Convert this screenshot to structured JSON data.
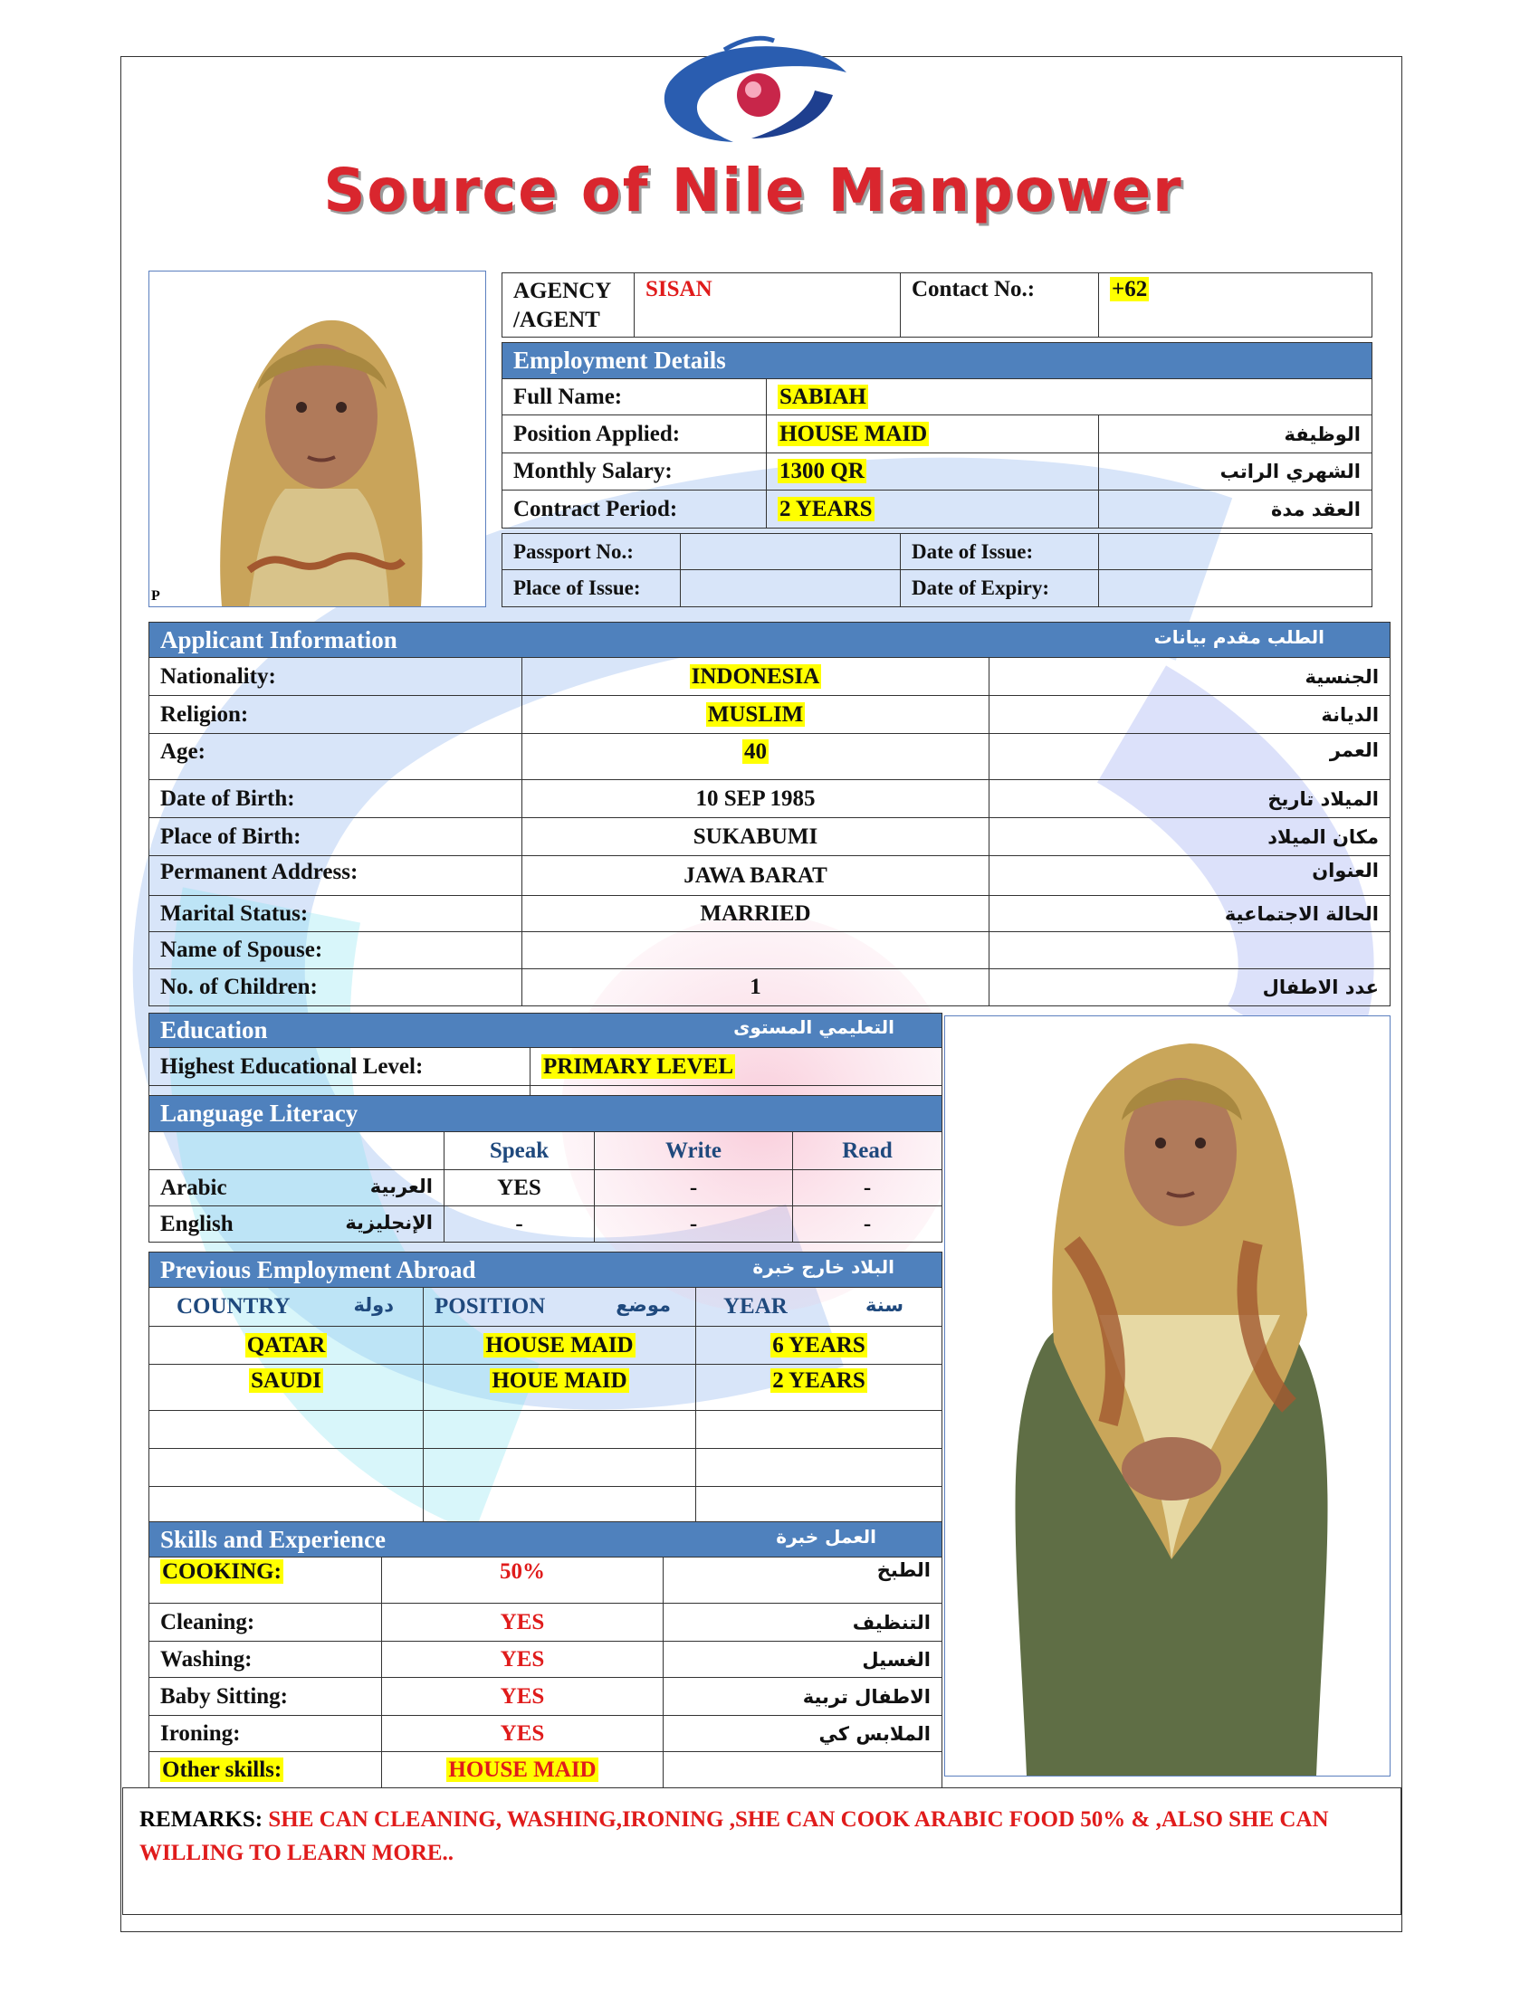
{
  "brand": {
    "name": "Source of Nile Manpower",
    "logo_colors": {
      "blue": "#2a5db0",
      "red": "#d9262e"
    }
  },
  "photo_caption": "P",
  "agency": {
    "label": "AGENCY /AGENT",
    "label_line1": "AGENCY",
    "label_line2": "/AGENT",
    "value": "SISAN",
    "contact_label": "Contact No.:",
    "contact_value": "+62"
  },
  "employment": {
    "header": "Employment Details",
    "rows": [
      {
        "label": "Full Name:",
        "value": "SABIAH",
        "arabic": ""
      },
      {
        "label": "Position Applied:",
        "value": "HOUSE MAID",
        "arabic": "الوظيفة"
      },
      {
        "label": "Monthly Salary:",
        "value": "1300 QR",
        "arabic": "الشهري الراتب"
      },
      {
        "label": "Contract Period:",
        "value": "2 YEARS",
        "arabic": "العقد مدة"
      }
    ]
  },
  "passport": {
    "passport_no_label": "Passport No.:",
    "passport_no": "",
    "date_issue_label": "Date of Issue:",
    "date_issue": "",
    "place_issue_label": "Place of Issue:",
    "place_issue": "",
    "date_expiry_label": "Date of Expiry:",
    "date_expiry": ""
  },
  "applicant": {
    "header": "Applicant Information",
    "header_ar": "الطلب مقدم بيانات",
    "rows": [
      {
        "label": "Nationality:",
        "value": "INDONESIA",
        "arabic": "الجنسية"
      },
      {
        "label": "Religion:",
        "value": "MUSLIM",
        "arabic": "الديانة"
      },
      {
        "label": "Age:",
        "value": "40",
        "arabic": "العمر"
      },
      {
        "label": "Date of Birth:",
        "value": "10 SEP 1985",
        "arabic": "الميلاد تاريخ"
      },
      {
        "label": "Place of Birth:",
        "value": "SUKABUMI",
        "arabic": "مكان الميلاد"
      },
      {
        "label": "Permanent Address:",
        "value": "JAWA BARAT",
        "arabic": "العنوان"
      },
      {
        "label": "Marital Status:",
        "value": "MARRIED",
        "arabic": "الحالة الاجتماعية"
      },
      {
        "label": "Name of Spouse:",
        "value": "",
        "arabic": ""
      },
      {
        "label": "No. of Children:",
        "value": "1",
        "arabic": "عدد الاطفال"
      }
    ]
  },
  "education": {
    "header": "Education",
    "header_ar": "التعليمي المستوى",
    "label": "Highest Educational Level:",
    "value": "PRIMARY LEVEL"
  },
  "language": {
    "header": "Language Literacy",
    "columns": [
      "Speak",
      "Write",
      "Read"
    ],
    "rows": [
      {
        "name": "Arabic",
        "arabic": "العربية",
        "speak": "YES",
        "write": "-",
        "read": "-"
      },
      {
        "name": "English",
        "arabic": "الإنجليزية",
        "speak": "-",
        "write": "-",
        "read": "-"
      }
    ]
  },
  "previous": {
    "header": "Previous Employment Abroad",
    "header_ar": "البلاد خارج خبرة",
    "columns": [
      {
        "en": "COUNTRY",
        "ar": "دولة"
      },
      {
        "en": "POSITION",
        "ar": "موضع"
      },
      {
        "en": "YEAR",
        "ar": "سنة"
      }
    ],
    "rows": [
      {
        "country": "QATAR",
        "position": "HOUSE MAID",
        "year": "6 YEARS"
      },
      {
        "country": "SAUDI",
        "position": "HOUE MAID",
        "year": "2 YEARS"
      }
    ]
  },
  "skills": {
    "header": "Skills and Experience",
    "header_ar": "العمل خبرة",
    "rows": [
      {
        "label": "COOKING:",
        "value": "50%",
        "arabic": "الطبخ"
      },
      {
        "label": "Cleaning:",
        "value": "YES",
        "arabic": "التنظيف"
      },
      {
        "label": "Washing:",
        "value": "YES",
        "arabic": "الغسيل"
      },
      {
        "label": "Baby Sitting:",
        "value": "YES",
        "arabic": "الاطفال تربية"
      },
      {
        "label": "Ironing:",
        "value": "YES",
        "arabic": "الملابس كي"
      },
      {
        "label": "Other skills:",
        "value": "HOUSE MAID",
        "arabic": ""
      }
    ]
  },
  "remarks": {
    "label": "REMARKS:",
    "text": "SHE CAN CLEANING, WASHING,IRONING ,SHE CAN COOK ARABIC FOOD 50%  & ,ALSO SHE CAN WILLING TO LEARN MORE.."
  },
  "colors": {
    "header_blue": "#4f81bd",
    "highlight": "#ffff00",
    "value_red": "#e01b1b",
    "column_blue": "#1f497d"
  }
}
